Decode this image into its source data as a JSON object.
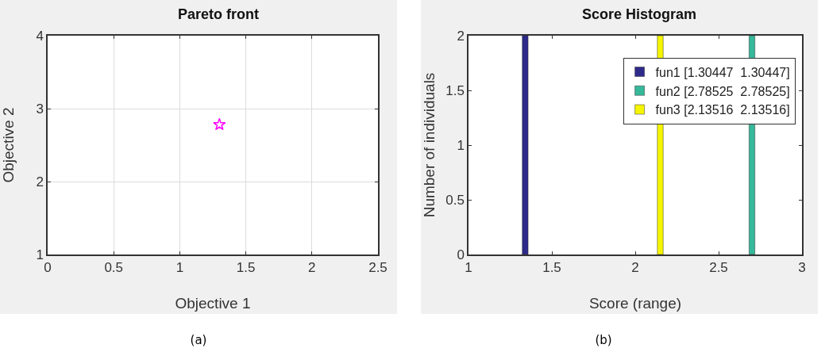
{
  "chart_data": [
    {
      "type": "scatter",
      "title": "Pareto front",
      "xlabel": "Objective 1",
      "ylabel": "Objective 2",
      "x": [
        1.3
      ],
      "series": [
        {
          "color": "#ff00ff",
          "values": [
            2.78
          ]
        }
      ],
      "marker": "star",
      "xlim": [
        0,
        2.5
      ],
      "xticks": [
        0,
        0.5,
        1,
        1.5,
        2,
        2.5
      ],
      "ylim": [
        1,
        4
      ],
      "yticks": [
        1,
        2,
        3,
        4
      ],
      "grid": true,
      "annotations": [
        "(a)"
      ]
    },
    {
      "type": "bar",
      "title": "Score Histogram",
      "xlabel": "Score (range)",
      "ylabel": "Number of individuals",
      "series": [
        {
          "name": "fun1 [1.30447  1.30447]",
          "color": "#2e2a8a",
          "x": [
            1.34
          ],
          "values": [
            2
          ]
        },
        {
          "name": "fun2 [2.78525  2.78525]",
          "color": "#36b89a",
          "x": [
            2.7
          ],
          "values": [
            2
          ]
        },
        {
          "name": "fun3 [2.13516  2.13516]",
          "color": "#f5f500",
          "x": [
            2.15
          ],
          "values": [
            2
          ]
        }
      ],
      "xlim": [
        1,
        3
      ],
      "xticks": [
        1,
        1.5,
        2,
        2.5,
        3
      ],
      "ylim": [
        0,
        2
      ],
      "yticks": [
        0,
        0.5,
        1,
        1.5,
        2
      ],
      "legend": "top right",
      "annotations": [
        "(b)"
      ]
    }
  ]
}
